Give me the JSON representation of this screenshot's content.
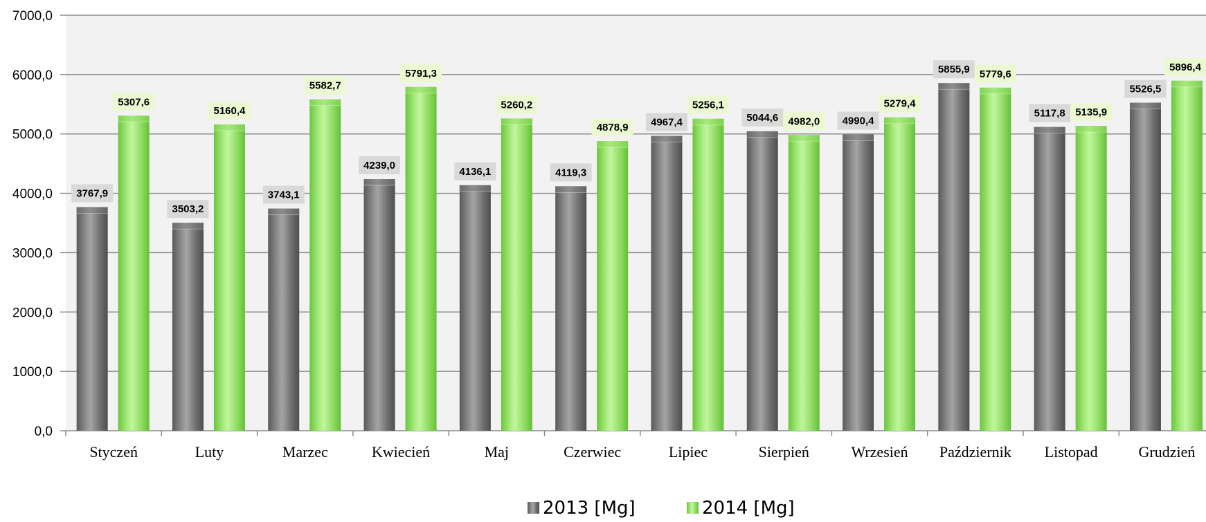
{
  "chart_data": {
    "type": "bar",
    "title": "",
    "xlabel": "",
    "ylabel": "",
    "categories": [
      "Styczeń",
      "Luty",
      "Marzec",
      "Kwiecień",
      "Maj",
      "Czerwiec",
      "Lipiec",
      "Sierpień",
      "Wrzesień",
      "Październik",
      "Listopad",
      "Grudzień"
    ],
    "series": [
      {
        "name": "2013 [Mg]",
        "color": "#7a7a7a",
        "label_bg": "#d9d9d9",
        "values": [
          3767.9,
          3503.2,
          3743.1,
          4239.0,
          4136.1,
          4119.3,
          4967.4,
          5044.6,
          4990.4,
          5855.9,
          5117.8,
          5526.5
        ],
        "labels": [
          "3767,9",
          "3503,2",
          "3743,1",
          "4239,0",
          "4136,1",
          "4119,3",
          "4967,4",
          "5044,6",
          "4990,4",
          "5855,9",
          "5117,8",
          "5526,5"
        ]
      },
      {
        "name": "2014 [Mg]",
        "color": "#8fdc63",
        "label_bg": "#ebf9d2",
        "values": [
          5307.6,
          5160.4,
          5582.7,
          5791.3,
          5260.2,
          4878.9,
          5256.1,
          4982.0,
          5279.4,
          5779.6,
          5135.9,
          5896.4
        ],
        "labels": [
          "5307,6",
          "5160,4",
          "5582,7",
          "5791,3",
          "5260,2",
          "4878,9",
          "5256,1",
          "4982,0",
          "5279,4",
          "5779,6",
          "5135,9",
          "5896,4"
        ]
      }
    ],
    "ylim": [
      0,
      7000
    ],
    "yticks": [
      0,
      1000,
      2000,
      3000,
      4000,
      5000,
      6000,
      7000
    ],
    "ytick_labels": [
      "0,0",
      "1000,0",
      "2000,0",
      "3000,0",
      "4000,0",
      "5000,0",
      "6000,0",
      "7000,0"
    ],
    "grid": true,
    "legend_position": "bottom",
    "colors": {
      "plot_background": "#f2f2f2",
      "gridline": "#8c8c8c"
    }
  }
}
